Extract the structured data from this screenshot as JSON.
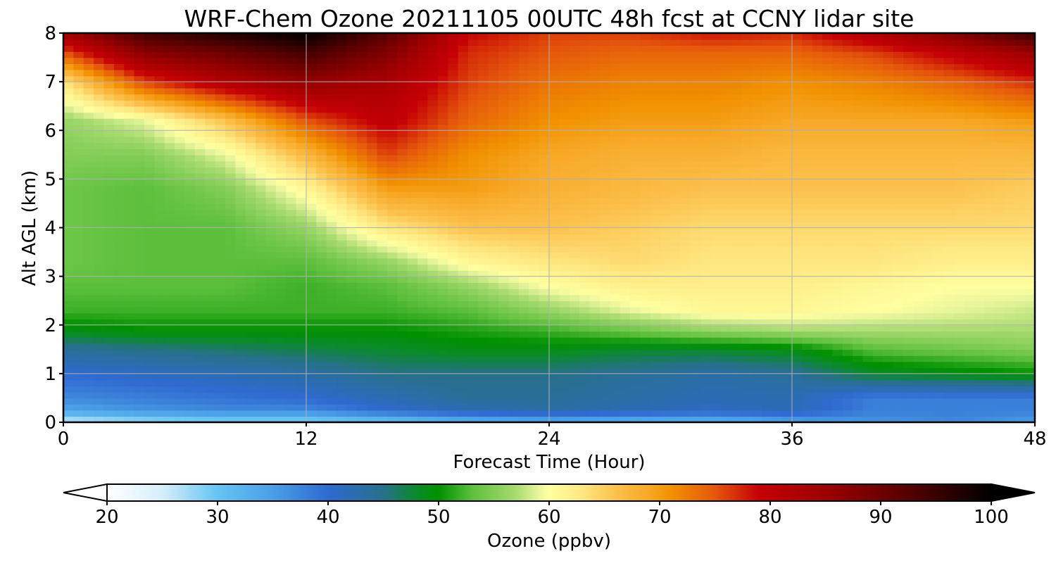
{
  "chart_data": {
    "type": "heatmap",
    "title": "WRF-Chem Ozone  20211105 00UTC 48h fcst at CCNY lidar site",
    "xlabel": "Forecast Time (Hour)",
    "ylabel": "Alt AGL (km)",
    "xlim": [
      0,
      48
    ],
    "ylim": [
      0,
      8
    ],
    "x_ticks": [
      "0",
      "12",
      "24",
      "36",
      "48"
    ],
    "y_ticks": [
      "0",
      "1",
      "2",
      "3",
      "4",
      "5",
      "6",
      "7",
      "8"
    ],
    "grid": true,
    "x": [
      0,
      4,
      8,
      12,
      16,
      20,
      24,
      28,
      32,
      36,
      40,
      44,
      48
    ],
    "y": [
      0,
      0.25,
      0.5,
      1.0,
      1.5,
      1.9,
      2.3,
      2.8,
      3.3,
      4.0,
      4.8,
      5.5,
      6.2,
      7.0,
      7.6,
      8.0
    ],
    "z": [
      [
        25,
        27,
        28,
        28,
        30,
        32,
        33,
        32,
        32,
        34,
        36,
        37,
        35
      ],
      [
        34,
        36,
        37,
        37,
        40,
        42,
        43,
        42,
        41,
        42,
        38,
        38,
        38
      ],
      [
        37,
        38,
        39,
        40,
        42,
        44,
        44,
        43,
        42,
        42,
        38,
        38,
        38
      ],
      [
        40,
        41,
        42,
        43,
        45,
        45,
        45,
        44,
        43,
        44,
        48,
        49,
        50
      ],
      [
        44,
        45,
        46,
        47,
        48,
        49,
        49,
        48,
        48,
        49,
        53,
        54,
        55
      ],
      [
        49,
        50,
        50,
        50,
        50,
        51,
        52,
        54,
        56,
        57,
        57,
        57,
        57
      ],
      [
        52,
        52,
        52,
        52,
        52,
        53,
        56,
        59,
        61,
        61,
        60,
        59,
        58
      ],
      [
        53,
        53,
        53,
        52,
        53,
        56,
        60,
        62,
        62,
        62,
        61,
        60,
        60
      ],
      [
        54,
        53,
        53,
        53,
        56,
        61,
        63,
        64,
        63,
        63,
        63,
        62,
        62
      ],
      [
        54,
        53,
        53,
        56,
        63,
        66,
        66,
        65,
        64,
        64,
        64,
        64,
        64
      ],
      [
        54,
        53,
        55,
        61,
        70,
        70,
        68,
        67,
        66,
        66,
        66,
        66,
        65
      ],
      [
        55,
        55,
        59,
        67,
        76,
        71,
        69,
        68,
        68,
        67,
        67,
        67,
        67
      ],
      [
        56,
        59,
        66,
        75,
        80,
        74,
        71,
        70,
        70,
        69,
        69,
        69,
        70
      ],
      [
        63,
        76,
        82,
        86,
        83,
        76,
        73,
        72,
        72,
        71,
        72,
        74,
        77
      ],
      [
        75,
        87,
        90,
        94,
        88,
        77,
        75,
        74,
        74,
        74,
        76,
        80,
        85
      ],
      [
        84,
        94,
        97,
        100,
        92,
        79,
        76,
        76,
        78,
        77,
        82,
        88,
        95
      ]
    ],
    "colorbar": {
      "label": "Ozone  (ppbv)",
      "min": 20,
      "max": 100,
      "ticks": [
        "20",
        "30",
        "40",
        "50",
        "60",
        "70",
        "80",
        "90",
        "100"
      ],
      "extend": "both"
    }
  }
}
